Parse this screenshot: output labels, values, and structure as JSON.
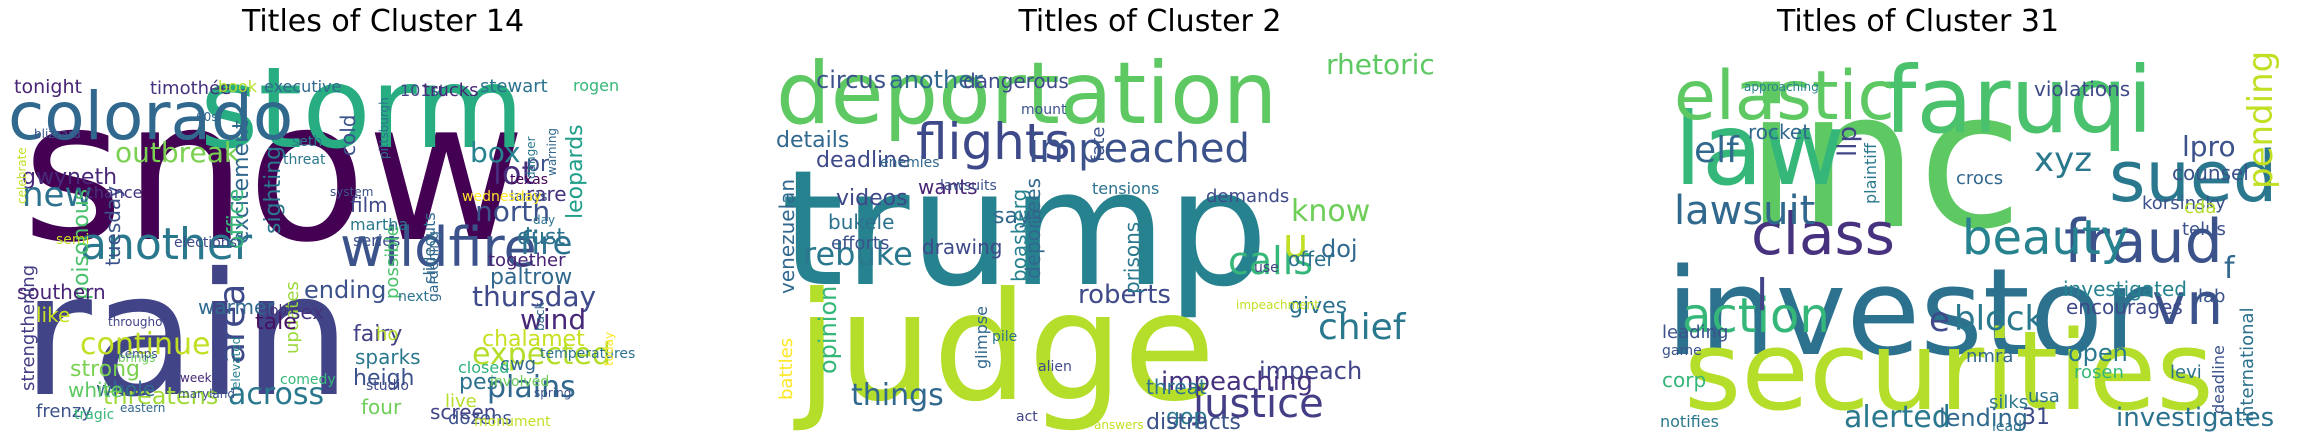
{
  "chart_data": [
    {
      "type": "wordcloud",
      "title": "Titles of Cluster 14",
      "words": [
        {
          "text": "snow",
          "color": "#440154"
        },
        {
          "text": "rain",
          "color": "#414487"
        },
        {
          "text": "storm",
          "color": "#27ad81"
        },
        {
          "text": "colorado",
          "color": "#31688e"
        },
        {
          "text": "another",
          "color": "#2a788e"
        },
        {
          "text": "wildfire",
          "color": "#3b528b"
        },
        {
          "text": "outbreak",
          "color": "#7ad151"
        },
        {
          "text": "gwyneth",
          "color": "#482878"
        },
        {
          "text": "new",
          "color": "#2c728e"
        },
        {
          "text": "timothée",
          "color": "#46327e"
        },
        {
          "text": "tonight",
          "color": "#482475"
        },
        {
          "text": "continue",
          "color": "#c2df23"
        },
        {
          "text": "plains",
          "color": "#31688e"
        },
        {
          "text": "expected",
          "color": "#b5de2b"
        },
        {
          "text": "thursday",
          "color": "#3e4a89"
        },
        {
          "text": "across",
          "color": "#2a788e"
        },
        {
          "text": "threatens",
          "color": "#a0da39"
        },
        {
          "text": "fire",
          "color": "#2c728e"
        },
        {
          "text": "north",
          "color": "#3b528b"
        },
        {
          "text": "lot",
          "color": "#472d7b"
        },
        {
          "text": "wind",
          "color": "#482878"
        },
        {
          "text": "area",
          "color": "#3e4989"
        },
        {
          "text": "strong",
          "color": "#7ad151"
        },
        {
          "text": "whole",
          "color": "#31688e"
        },
        {
          "text": "white",
          "color": "#5ec962"
        },
        {
          "text": "poisonous",
          "color": "#4ac16d"
        },
        {
          "text": "southern",
          "color": "#482576"
        },
        {
          "text": "like",
          "color": "#c8e020"
        },
        {
          "text": "strengthening",
          "color": "#433e85"
        },
        {
          "text": "frenzy",
          "color": "#3b528b"
        },
        {
          "text": "tragic",
          "color": "#35b779"
        },
        {
          "text": "updates",
          "color": "#9bd93c"
        },
        {
          "text": "tale",
          "color": "#471164"
        },
        {
          "text": "ending",
          "color": "#3b528b"
        },
        {
          "text": "sex",
          "color": "#46337e"
        },
        {
          "text": "fairy",
          "color": "#424186"
        },
        {
          "text": "sparks",
          "color": "#2a788e"
        },
        {
          "text": "heigh",
          "color": "#3b528b"
        },
        {
          "text": "four",
          "color": "#6ece58"
        },
        {
          "text": "screen",
          "color": "#414487"
        },
        {
          "text": "pes",
          "color": "#2c728e"
        },
        {
          "text": "live",
          "color": "#b5de2b"
        },
        {
          "text": "dozens",
          "color": "#3b528b"
        },
        {
          "text": "chalamet",
          "color": "#c8e020"
        },
        {
          "text": "cwg",
          "color": "#31688e"
        },
        {
          "text": "closed",
          "color": "#2db27d"
        },
        {
          "text": "paltrow",
          "color": "#31688e"
        },
        {
          "text": "together",
          "color": "#482475"
        },
        {
          "text": "dust",
          "color": "#2c728e"
        },
        {
          "text": "rare",
          "color": "#46327e"
        },
        {
          "text": "box",
          "color": "#26828e"
        },
        {
          "text": "pr",
          "color": "#3b528b"
        },
        {
          "text": "leopards",
          "color": "#1f9e89"
        },
        {
          "text": "film",
          "color": "#3e4a89"
        },
        {
          "text": "martha",
          "color": "#2a788e"
        },
        {
          "text": "series",
          "color": "#3b528b"
        },
        {
          "text": "sighting",
          "color": "#2a788e"
        },
        {
          "text": "excitement",
          "color": "#31688e"
        },
        {
          "text": "office",
          "color": "#35b779"
        },
        {
          "text": "warmer",
          "color": "#31688e"
        },
        {
          "text": "tuesday",
          "color": "#3b528b"
        },
        {
          "text": "chance",
          "color": "#46327e"
        },
        {
          "text": "book",
          "color": "#b5de2b"
        },
        {
          "text": "executive",
          "color": "#31688e"
        },
        {
          "text": "stewart",
          "color": "#2c728e"
        },
        {
          "text": "101st",
          "color": "#414487"
        },
        {
          "text": "trucks",
          "color": "#482878"
        },
        {
          "text": "cold",
          "color": "#3b528b"
        },
        {
          "text": "rogen",
          "color": "#35b779"
        },
        {
          "text": "texas",
          "color": "#440154"
        },
        {
          "text": "lands",
          "color": "#3b528b"
        },
        {
          "text": "possible",
          "color": "#4ac16d"
        },
        {
          "text": "slideouts",
          "color": "#31688e"
        },
        {
          "text": "seth",
          "color": "#2a788e"
        },
        {
          "text": "threat",
          "color": "#2a788e"
        },
        {
          "text": "semi",
          "color": "#c2df23"
        },
        {
          "text": "wednesday",
          "color": "#fde725"
        },
        {
          "text": "next",
          "color": "#2c728e"
        },
        {
          "text": "job'",
          "color": "#46327e"
        },
        {
          "text": "comedy",
          "color": "#35b779"
        },
        {
          "text": "ho",
          "color": "#b5de2b"
        },
        {
          "text": "studio",
          "color": "#3e4a89"
        },
        {
          "text": "involved",
          "color": "#6ece58"
        },
        {
          "text": "gardening",
          "color": "#31688e"
        },
        {
          "text": "monument",
          "color": "#c2df23"
        },
        {
          "text": "spring",
          "color": "#3b528b"
        },
        {
          "text": "temperatures",
          "color": "#2c728e"
        },
        {
          "text": "elevated",
          "color": "#26828e"
        },
        {
          "text": "maryland",
          "color": "#3b528b"
        },
        {
          "text": "eastern",
          "color": "#31688e"
        },
        {
          "text": "week",
          "color": "#482878"
        },
        {
          "text": "throughout",
          "color": "#414487"
        },
        {
          "text": "danger",
          "color": "#2a788e"
        },
        {
          "text": "warning",
          "color": "#31688e"
        },
        {
          "text": "system",
          "color": "#3b528b"
        },
        {
          "text": "day",
          "color": "#2c728e"
        },
        {
          "text": "back",
          "color": "#31688e"
        },
        {
          "text": "elections",
          "color": "#3e4989"
        },
        {
          "text": "pittsburgh",
          "color": "#2c728e"
        },
        {
          "text": "blizzard",
          "color": "#3b528b"
        },
        {
          "text": "celebrate",
          "color": "#c2df23"
        },
        {
          "text": "brings",
          "color": "#6ece58"
        },
        {
          "text": "60s",
          "color": "#31688e"
        },
        {
          "text": "today",
          "color": "#fde725"
        },
        {
          "text": "temps",
          "color": "#3b528b"
        }
      ]
    },
    {
      "type": "wordcloud",
      "title": "Titles of Cluster 2",
      "words": [
        {
          "text": "trump",
          "color": "#26828e"
        },
        {
          "text": "judge",
          "color": "#b5de2b"
        },
        {
          "text": "deportation",
          "color": "#5ec962"
        },
        {
          "text": "flights",
          "color": "#3e4989"
        },
        {
          "text": "impeached",
          "color": "#3b528b"
        },
        {
          "text": "justice",
          "color": "#433e85"
        },
        {
          "text": "chief",
          "color": "#2a788e"
        },
        {
          "text": "calls",
          "color": "#35b779"
        },
        {
          "text": "rebuke",
          "color": "#2a788e"
        },
        {
          "text": "things",
          "color": "#31688e"
        },
        {
          "text": "rhetoric",
          "color": "#5ec962"
        },
        {
          "text": "circus",
          "color": "#3b528b"
        },
        {
          "text": "another",
          "color": "#31688e"
        },
        {
          "text": "dangerous",
          "color": "#3e4a89"
        },
        {
          "text": "details",
          "color": "#31688e"
        },
        {
          "text": "deadline",
          "color": "#3e4989"
        },
        {
          "text": "know",
          "color": "#6ece58"
        },
        {
          "text": "doj",
          "color": "#31688e"
        },
        {
          "text": "gives",
          "color": "#2c728e"
        },
        {
          "text": "impeach",
          "color": "#414487"
        },
        {
          "text": "impeaching",
          "color": "#46327e"
        },
        {
          "text": "u",
          "color": "#c2df23"
        },
        {
          "text": "roberts",
          "color": "#3e4a89"
        },
        {
          "text": "gop",
          "color": "#2a788e"
        },
        {
          "text": "distracts",
          "color": "#3b528b"
        },
        {
          "text": "threat",
          "color": "#2c728e"
        },
        {
          "text": "says",
          "color": "#31688e"
        },
        {
          "text": "videos",
          "color": "#3e4989"
        },
        {
          "text": "bukele",
          "color": "#2c728e"
        },
        {
          "text": "efforts",
          "color": "#3b528b"
        },
        {
          "text": "drawing",
          "color": "#3e4a89"
        },
        {
          "text": "wants",
          "color": "#482475"
        },
        {
          "text": "opinion",
          "color": "#35b779"
        },
        {
          "text": "battles",
          "color": "#fde725"
        },
        {
          "text": "venezuelan",
          "color": "#31688e"
        },
        {
          "text": "boasberg",
          "color": "#26828e"
        },
        {
          "text": "deportees",
          "color": "#31688e"
        },
        {
          "text": "prisons",
          "color": "#2a788e"
        },
        {
          "text": "fate",
          "color": "#3b528b"
        },
        {
          "text": "offer",
          "color": "#2c728e"
        },
        {
          "text": "demands",
          "color": "#3e4a89"
        },
        {
          "text": "tensions",
          "color": "#2c728e"
        },
        {
          "text": "use",
          "color": "#414487"
        },
        {
          "text": "impeachment",
          "color": "#c2df23"
        },
        {
          "text": "mount",
          "color": "#3b528b"
        },
        {
          "text": "enemies",
          "color": "#31688e"
        },
        {
          "text": "lawsuits",
          "color": "#3b528b"
        },
        {
          "text": "glimpse",
          "color": "#31688e"
        },
        {
          "text": "pile",
          "color": "#2c728e"
        },
        {
          "text": "alien",
          "color": "#3e4a89"
        },
        {
          "text": "act",
          "color": "#414487"
        },
        {
          "text": "answers",
          "color": "#c2df23"
        }
      ]
    },
    {
      "type": "wordcloud",
      "title": "Titles of Cluster 31",
      "words": [
        {
          "text": "inc",
          "color": "#5ec962"
        },
        {
          "text": "investor",
          "color": "#2c728e"
        },
        {
          "text": "securities",
          "color": "#b5de2b"
        },
        {
          "text": "faruqi",
          "color": "#4ac16d"
        },
        {
          "text": "law",
          "color": "#35b779"
        },
        {
          "text": "elastic",
          "color": "#5ec962"
        },
        {
          "text": "sued",
          "color": "#2a788e"
        },
        {
          "text": "fraud",
          "color": "#3b528b"
        },
        {
          "text": "class",
          "color": "#46327e"
        },
        {
          "text": "action",
          "color": "#35b779"
        },
        {
          "text": "vn",
          "color": "#3b528b"
        },
        {
          "text": "lawsuit",
          "color": "#31688e"
        },
        {
          "text": "beauty",
          "color": "#26828e"
        },
        {
          "text": "xyz",
          "color": "#2a788e"
        },
        {
          "text": "elf",
          "color": "#31688e"
        },
        {
          "text": "llp",
          "color": "#414487"
        },
        {
          "text": "block",
          "color": "#2a788e"
        },
        {
          "text": "e",
          "color": "#3e4a89"
        },
        {
          "text": "alerted",
          "color": "#2a788e"
        },
        {
          "text": "pending",
          "color": "#c2df23"
        },
        {
          "text": "lpro",
          "color": "#3b528b"
        },
        {
          "text": "counsel",
          "color": "#3b528b"
        },
        {
          "text": "investigates",
          "color": "#2c728e"
        },
        {
          "text": "lending",
          "color": "#31688e"
        },
        {
          "text": "open",
          "color": "#2a788e"
        },
        {
          "text": "investigated",
          "color": "#26828e"
        },
        {
          "text": "rosen",
          "color": "#35b779"
        },
        {
          "text": "f",
          "color": "#31688e"
        },
        {
          "text": "l",
          "color": "#414487"
        },
        {
          "text": "corp",
          "color": "#35b779"
        },
        {
          "text": "leading",
          "color": "#3b528b"
        },
        {
          "text": "crocs",
          "color": "#31688e"
        },
        {
          "text": "violations",
          "color": "#3e4989"
        },
        {
          "text": "korsinsky",
          "color": "#3b528b"
        },
        {
          "text": "plaintiff",
          "color": "#2a788e"
        },
        {
          "text": "rocket",
          "color": "#31688e"
        },
        {
          "text": "telus",
          "color": "#3b528b"
        },
        {
          "text": "cda",
          "color": "#b5de2b"
        },
        {
          "text": "encourages",
          "color": "#3e4a89"
        },
        {
          "text": "nmra",
          "color": "#31688e"
        },
        {
          "text": "usa",
          "color": "#2c728e"
        },
        {
          "text": "levi",
          "color": "#2c728e"
        },
        {
          "text": "lab",
          "color": "#3b528b"
        },
        {
          "text": "international",
          "color": "#2c728e"
        },
        {
          "text": "deadline",
          "color": "#3b528b"
        },
        {
          "text": "silks",
          "color": "#2a788e"
        },
        {
          "text": "31",
          "color": "#3e4989"
        },
        {
          "text": "notifies",
          "color": "#2a788e"
        },
        {
          "text": "lead",
          "color": "#2c728e"
        },
        {
          "text": "game",
          "color": "#3b528b"
        },
        {
          "text": "approaching",
          "color": "#26828e"
        }
      ]
    }
  ]
}
